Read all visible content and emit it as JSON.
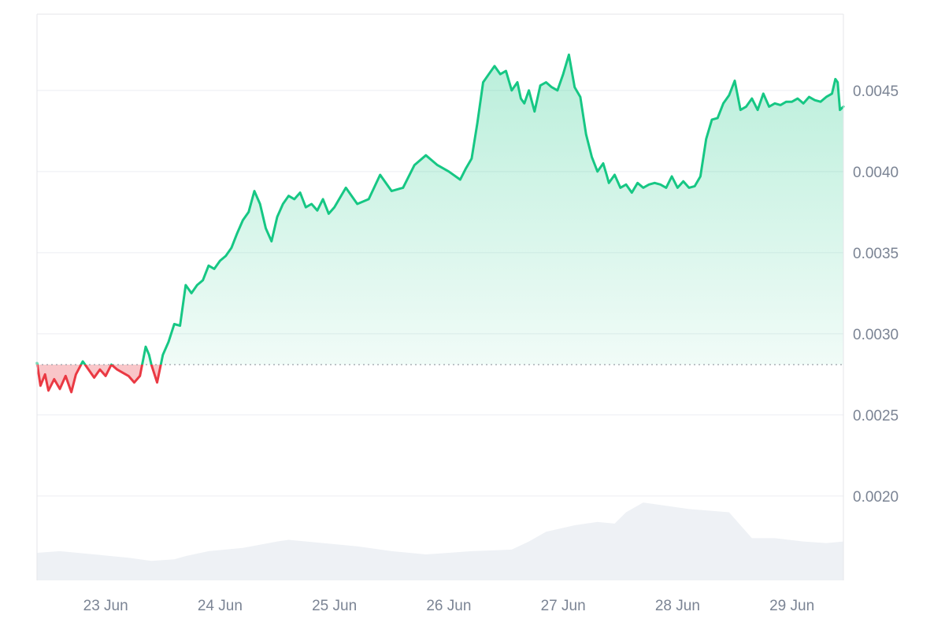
{
  "chart_data": {
    "type": "area",
    "title": "",
    "xlabel": "",
    "ylabel": "",
    "x_ticks": [
      "23 Jun",
      "24 Jun",
      "25 Jun",
      "26 Jun",
      "27 Jun",
      "28 Jun",
      "29 Jun"
    ],
    "y_ticks": [
      "0.0020",
      "0.0025",
      "0.0030",
      "0.0035",
      "0.0040",
      "0.0045"
    ],
    "ylim": [
      0.00148,
      0.00497
    ],
    "x_range_days": [
      22.4,
      29.45
    ],
    "baseline_price": 0.00281,
    "grid": true,
    "colors": {
      "up_line": "#16c784",
      "up_fill": "#16c784",
      "down_line": "#ea3943",
      "down_fill": "#ea3943",
      "volume": "#eef1f5",
      "grid": "#eceef2",
      "border": "#e4e6ea",
      "baseline": "#9aa0a8",
      "tick_text": "#7b8494"
    },
    "series": [
      {
        "x": [
          22.4,
          22.43,
          22.47,
          22.5,
          22.55,
          22.6,
          22.65,
          22.7,
          22.74,
          22.8,
          22.85,
          22.9,
          22.95,
          23.0,
          23.05,
          23.1,
          23.15,
          23.2,
          23.25,
          23.3,
          23.35,
          23.38,
          23.4,
          23.45,
          23.5,
          23.55,
          23.6,
          23.65,
          23.7,
          23.75,
          23.8,
          23.85,
          23.9,
          23.95,
          24.0,
          24.05,
          24.1,
          24.15,
          24.2,
          24.25,
          24.3,
          24.35,
          24.4,
          24.45,
          24.5,
          24.55,
          24.6,
          24.65,
          24.7,
          24.75,
          24.8,
          24.85,
          24.9,
          24.95,
          25.0,
          25.1,
          25.2,
          25.3,
          25.4,
          25.5,
          25.6,
          25.7,
          25.8,
          25.9,
          26.0,
          26.1,
          26.15,
          26.2,
          26.25,
          26.3,
          26.35,
          26.4,
          26.45,
          26.5,
          26.55,
          26.6,
          26.63,
          26.66,
          26.7,
          26.75,
          26.8,
          26.85,
          26.9,
          26.95,
          27.0,
          27.05,
          27.1,
          27.15,
          27.2,
          27.25,
          27.3,
          27.35,
          27.38,
          27.4,
          27.45,
          27.5,
          27.55,
          27.6,
          27.65,
          27.7,
          27.75,
          27.8,
          27.85,
          27.9,
          27.95,
          28.0,
          28.05,
          28.1,
          28.15,
          28.2,
          28.25,
          28.3,
          28.35,
          28.4,
          28.45,
          28.5,
          28.55,
          28.6,
          28.65,
          28.7,
          28.75,
          28.8,
          28.85,
          28.9,
          28.95,
          29.0,
          29.05,
          29.1,
          29.15,
          29.2,
          29.25,
          29.3,
          29.35,
          29.38,
          29.4,
          29.42,
          29.45
        ],
        "y": [
          0.00282,
          0.00268,
          0.00275,
          0.00265,
          0.00272,
          0.00266,
          0.00274,
          0.00264,
          0.00275,
          0.00283,
          0.00278,
          0.00273,
          0.00278,
          0.00274,
          0.00281,
          0.00278,
          0.00276,
          0.00274,
          0.0027,
          0.00274,
          0.00292,
          0.00287,
          0.00281,
          0.0027,
          0.00287,
          0.00295,
          0.00306,
          0.00305,
          0.0033,
          0.00325,
          0.0033,
          0.00333,
          0.00342,
          0.0034,
          0.00345,
          0.00348,
          0.00353,
          0.00362,
          0.0037,
          0.00375,
          0.00388,
          0.0038,
          0.00365,
          0.00357,
          0.00372,
          0.0038,
          0.00385,
          0.00383,
          0.00387,
          0.00378,
          0.0038,
          0.00376,
          0.00383,
          0.00374,
          0.00378,
          0.0039,
          0.0038,
          0.00383,
          0.00398,
          0.00388,
          0.0039,
          0.00404,
          0.0041,
          0.00404,
          0.004,
          0.00395,
          0.00402,
          0.00408,
          0.0043,
          0.00455,
          0.0046,
          0.00465,
          0.0046,
          0.00462,
          0.0045,
          0.00455,
          0.00445,
          0.00442,
          0.0045,
          0.00437,
          0.00453,
          0.00455,
          0.00452,
          0.0045,
          0.0046,
          0.00472,
          0.00452,
          0.00446,
          0.00423,
          0.00409,
          0.004,
          0.00405,
          0.00398,
          0.00393,
          0.00398,
          0.0039,
          0.00392,
          0.00387,
          0.00393,
          0.0039,
          0.00392,
          0.00393,
          0.00392,
          0.0039,
          0.00397,
          0.0039,
          0.00394,
          0.0039,
          0.00391,
          0.00397,
          0.0042,
          0.00432,
          0.00433,
          0.00442,
          0.00447,
          0.00456,
          0.00438,
          0.0044,
          0.00445,
          0.00438,
          0.00448,
          0.0044,
          0.00442,
          0.00441,
          0.00443,
          0.00443,
          0.00445,
          0.00442,
          0.00446,
          0.00444,
          0.00443,
          0.00446,
          0.00448,
          0.00457,
          0.00455,
          0.00438,
          0.0044
        ]
      }
    ],
    "volume": {
      "x": [
        22.4,
        22.6,
        22.9,
        23.2,
        23.4,
        23.6,
        23.7,
        23.9,
        24.2,
        24.5,
        24.6,
        24.9,
        25.2,
        25.5,
        25.8,
        26.0,
        26.2,
        26.55,
        26.7,
        26.85,
        27.1,
        27.3,
        27.45,
        27.55,
        27.7,
        27.9,
        28.1,
        28.45,
        28.55,
        28.65,
        28.85,
        29.1,
        29.3,
        29.45
      ],
      "y": [
        0.00165,
        0.00166,
        0.00164,
        0.00162,
        0.0016,
        0.00161,
        0.00163,
        0.00166,
        0.00168,
        0.00172,
        0.00173,
        0.00171,
        0.00169,
        0.00166,
        0.00164,
        0.00165,
        0.00166,
        0.00167,
        0.00172,
        0.00178,
        0.00182,
        0.00184,
        0.00183,
        0.0019,
        0.00196,
        0.00194,
        0.00192,
        0.0019,
        0.00182,
        0.00174,
        0.00174,
        0.00172,
        0.00171,
        0.00172
      ]
    }
  }
}
